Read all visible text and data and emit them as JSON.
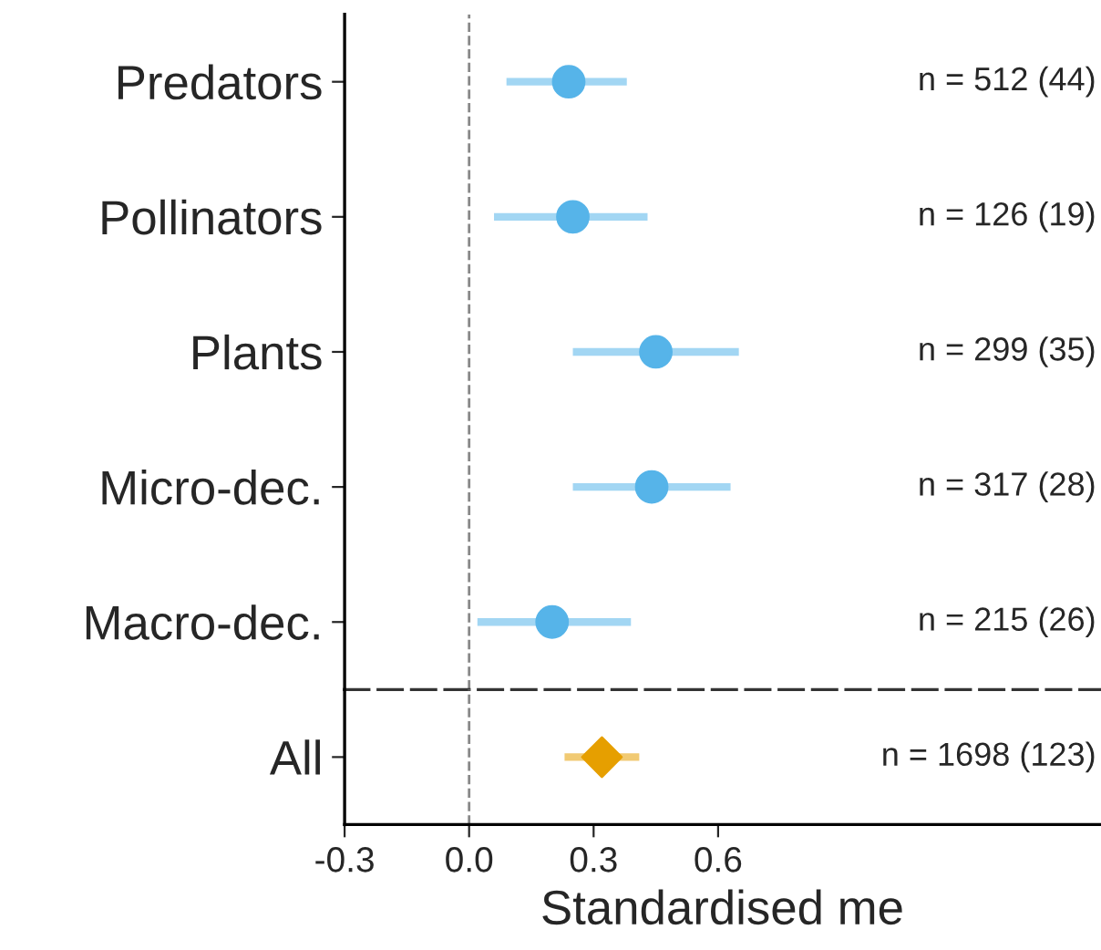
{
  "chart_data": [
    {
      "type": "scatter",
      "orientation": "horizontal",
      "categories": [
        "Predators",
        "Pollinators",
        "Plants",
        "Micro-dec.",
        "Macro-dec."
      ],
      "series": [
        {
          "color": "#56b4e9",
          "values": [
            0.24,
            0.25,
            0.45,
            0.44,
            0.2
          ],
          "errors": [
            [
              0.09,
              0.38
            ],
            [
              0.06,
              0.43
            ],
            [
              0.25,
              0.65
            ],
            [
              0.25,
              0.63
            ],
            [
              0.02,
              0.39
            ]
          ]
        }
      ],
      "marker": "circle",
      "xlim": [
        -0.3,
        1.52
      ],
      "xticks": [
        -0.3,
        0.0,
        0.3,
        0.6
      ],
      "tick_labels": "y",
      "grid": false,
      "ref_lines": [
        {
          "axis": "x",
          "value": 0,
          "color": "#888888",
          "line_style": "dashed"
        }
      ],
      "annotations": [
        "n = 512 (44)",
        "n = 126 (19)",
        "n = 299 (35)",
        "n = 317 (28)",
        "n = 215 (26)"
      ]
    },
    {
      "type": "scatter",
      "orientation": "horizontal",
      "categories": [
        "All"
      ],
      "series": [
        {
          "color": "#e69f00",
          "values": [
            0.32
          ],
          "errors": [
            [
              0.23,
              0.41
            ]
          ]
        }
      ],
      "marker": "diamond",
      "xlim": [
        -0.3,
        1.52
      ],
      "xticks": [
        -0.3,
        {
          "value": 0,
          "label": "0.0"
        },
        0.3,
        0.6
      ],
      "xlabel": "Standardised me",
      "grid": false,
      "ref_lines": [
        {
          "axis": "x",
          "value": 0,
          "color": "#888888",
          "line_style": "dashed"
        }
      ],
      "annotations": [
        "n = 1698 (123)"
      ]
    }
  ]
}
